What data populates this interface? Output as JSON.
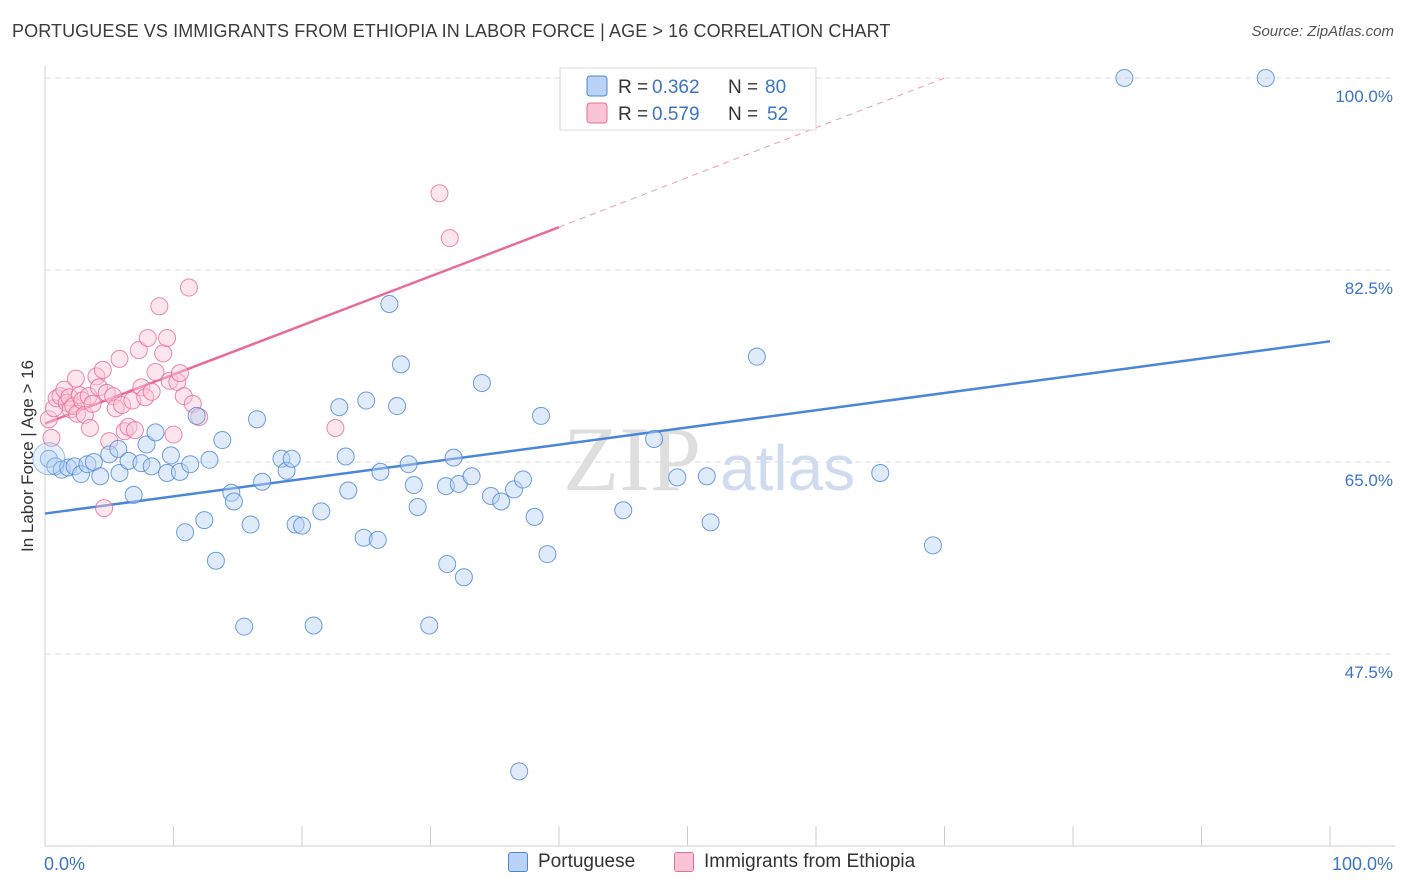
{
  "title": "PORTUGUESE VS IMMIGRANTS FROM ETHIOPIA IN LABOR FORCE | AGE > 16 CORRELATION CHART",
  "source": "Source: ZipAtlas.com",
  "watermark": {
    "zip": "ZIP",
    "atlas": "atlas"
  },
  "colors": {
    "blue": "#4a86d8",
    "blue_fill": "#b8d3f5",
    "pink": "#e86c96",
    "pink_fill": "#f9c5d6",
    "axis_text": "#3a74c9"
  },
  "chart_data": {
    "type": "scatter",
    "title": "PORTUGUESE VS IMMIGRANTS FROM ETHIOPIA IN LABOR FORCE | AGE > 16 CORRELATION CHART",
    "xlabel": "",
    "ylabel": "In Labor Force | Age > 16",
    "xlim": [
      0,
      100
    ],
    "ylim": [
      30,
      100
    ],
    "x_tick_labels": [
      "0.0%",
      "100.0%"
    ],
    "y_ticks": [
      47.5,
      65.0,
      82.5,
      100.0
    ],
    "y_tick_labels": [
      "47.5%",
      "65.0%",
      "82.5%",
      "100.0%"
    ],
    "legend": [
      {
        "name": "Portuguese",
        "r_label": "R =",
        "r": "0.362",
        "n_label": "N =",
        "n": "80"
      },
      {
        "name": "Immigrants from Ethiopia",
        "r_label": "R =",
        "r": "0.579",
        "n_label": "N =",
        "n": "52"
      }
    ],
    "series": [
      {
        "name": "Portuguese",
        "color": "#4a86d8",
        "trend": {
          "x0": 0,
          "y0": 60.3,
          "x1": 100,
          "y1": 76.0
        },
        "points": [
          [
            0.3,
            65.3
          ],
          [
            0.8,
            64.6
          ],
          [
            1.3,
            64.3
          ],
          [
            1.8,
            64.5
          ],
          [
            2.3,
            64.6
          ],
          [
            2.8,
            63.9
          ],
          [
            3.3,
            64.8
          ],
          [
            3.8,
            65.0
          ],
          [
            4.3,
            63.7
          ],
          [
            5.0,
            65.7
          ],
          [
            5.7,
            66.2
          ],
          [
            5.8,
            64.0
          ],
          [
            6.5,
            65.1
          ],
          [
            6.9,
            62.0
          ],
          [
            7.5,
            64.9
          ],
          [
            7.9,
            66.6
          ],
          [
            8.3,
            64.6
          ],
          [
            8.6,
            67.7
          ],
          [
            9.5,
            64.0
          ],
          [
            9.8,
            65.6
          ],
          [
            10.5,
            64.1
          ],
          [
            10.9,
            58.6
          ],
          [
            11.3,
            64.8
          ],
          [
            11.8,
            69.2
          ],
          [
            12.4,
            59.7
          ],
          [
            12.8,
            65.2
          ],
          [
            13.3,
            56.0
          ],
          [
            13.8,
            67.0
          ],
          [
            14.5,
            62.2
          ],
          [
            14.7,
            61.4
          ],
          [
            15.5,
            50.0
          ],
          [
            16.0,
            59.3
          ],
          [
            16.5,
            68.9
          ],
          [
            16.9,
            63.2
          ],
          [
            18.4,
            65.3
          ],
          [
            18.8,
            64.2
          ],
          [
            19.2,
            65.3
          ],
          [
            19.5,
            59.3
          ],
          [
            20.0,
            59.2
          ],
          [
            20.9,
            50.1
          ],
          [
            21.5,
            60.5
          ],
          [
            22.9,
            70.0
          ],
          [
            23.4,
            65.5
          ],
          [
            23.6,
            62.4
          ],
          [
            24.8,
            58.1
          ],
          [
            25.0,
            70.6
          ],
          [
            25.9,
            57.9
          ],
          [
            26.1,
            64.1
          ],
          [
            26.8,
            79.4
          ],
          [
            27.4,
            70.1
          ],
          [
            27.7,
            73.9
          ],
          [
            28.3,
            64.8
          ],
          [
            28.7,
            62.9
          ],
          [
            29.0,
            60.9
          ],
          [
            29.9,
            50.1
          ],
          [
            31.2,
            62.8
          ],
          [
            31.3,
            55.7
          ],
          [
            31.8,
            65.4
          ],
          [
            32.2,
            63.0
          ],
          [
            32.6,
            54.5
          ],
          [
            33.2,
            63.7
          ],
          [
            34.0,
            72.2
          ],
          [
            34.7,
            61.9
          ],
          [
            35.5,
            61.4
          ],
          [
            36.5,
            62.5
          ],
          [
            36.9,
            36.8
          ],
          [
            37.2,
            63.4
          ],
          [
            38.1,
            60.0
          ],
          [
            38.6,
            69.2
          ],
          [
            39.1,
            56.6
          ],
          [
            45.0,
            60.6
          ],
          [
            47.4,
            67.1
          ],
          [
            49.2,
            63.6
          ],
          [
            51.5,
            63.7
          ],
          [
            51.8,
            59.5
          ],
          [
            55.4,
            74.6
          ],
          [
            65.0,
            64.0
          ],
          [
            69.1,
            57.4
          ],
          [
            84.0,
            100.0
          ],
          [
            95.0,
            100.0
          ]
        ]
      },
      {
        "name": "Immigrants from Ethiopia",
        "color": "#e86c96",
        "trend": {
          "x0": 0,
          "y0": 68.5,
          "x1": 40,
          "y1": 86.4,
          "dashed_to": {
            "x": 70,
            "y": 100
          }
        },
        "points": [
          [
            0.3,
            68.9
          ],
          [
            0.5,
            67.2
          ],
          [
            0.7,
            69.9
          ],
          [
            0.9,
            70.8
          ],
          [
            1.2,
            71.0
          ],
          [
            1.5,
            71.6
          ],
          [
            1.7,
            70.4
          ],
          [
            1.9,
            70.9
          ],
          [
            2.0,
            69.8
          ],
          [
            2.2,
            70.1
          ],
          [
            2.5,
            69.4
          ],
          [
            2.7,
            71.1
          ],
          [
            2.9,
            70.6
          ],
          [
            3.1,
            69.3
          ],
          [
            3.4,
            71.0
          ],
          [
            3.5,
            68.1
          ],
          [
            3.7,
            70.3
          ],
          [
            4.0,
            72.8
          ],
          [
            4.2,
            71.8
          ],
          [
            4.5,
            73.4
          ],
          [
            4.8,
            71.3
          ],
          [
            5.0,
            66.9
          ],
          [
            5.3,
            71.0
          ],
          [
            5.5,
            69.9
          ],
          [
            5.8,
            74.4
          ],
          [
            6.0,
            70.2
          ],
          [
            6.2,
            67.8
          ],
          [
            6.5,
            68.2
          ],
          [
            6.8,
            70.6
          ],
          [
            7.0,
            67.9
          ],
          [
            7.3,
            75.2
          ],
          [
            7.5,
            71.8
          ],
          [
            7.8,
            70.9
          ],
          [
            8.0,
            76.3
          ],
          [
            8.3,
            71.4
          ],
          [
            8.6,
            73.2
          ],
          [
            8.9,
            79.2
          ],
          [
            9.2,
            74.9
          ],
          [
            9.5,
            76.3
          ],
          [
            9.7,
            72.4
          ],
          [
            10.0,
            67.5
          ],
          [
            10.3,
            72.3
          ],
          [
            10.5,
            73.1
          ],
          [
            10.8,
            71.0
          ],
          [
            11.2,
            80.9
          ],
          [
            11.5,
            70.3
          ],
          [
            12.0,
            69.1
          ],
          [
            2.4,
            72.6
          ],
          [
            22.6,
            68.1
          ],
          [
            30.7,
            89.5
          ],
          [
            31.5,
            85.4
          ],
          [
            4.6,
            60.8
          ]
        ]
      }
    ]
  }
}
